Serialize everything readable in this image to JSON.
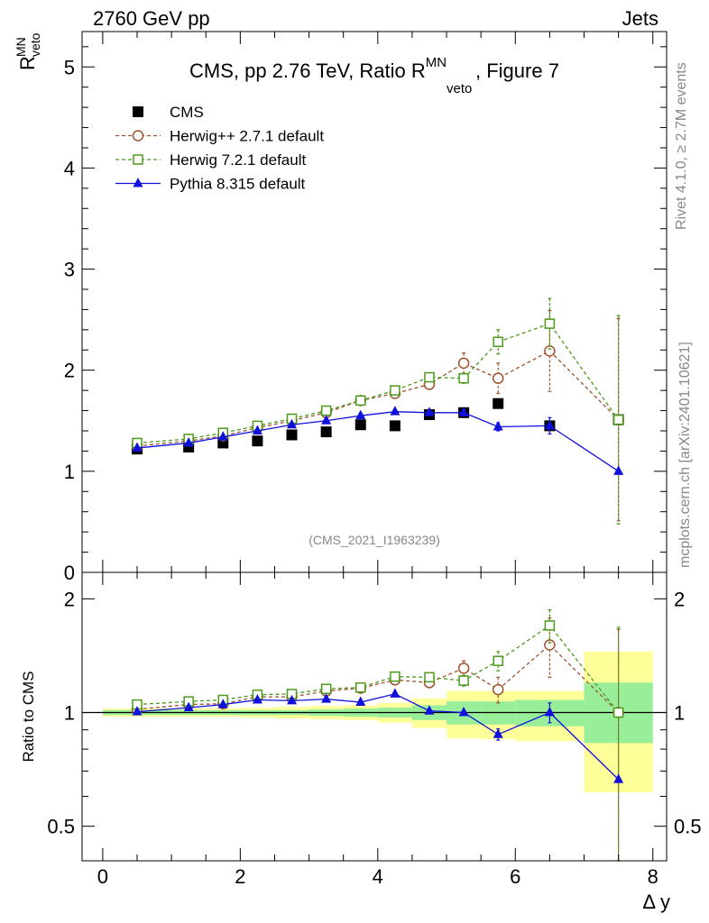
{
  "header": {
    "left": "2760 GeV pp",
    "right": "Jets"
  },
  "side_labels": {
    "rivet": "Rivet 4.1.0, ≥ 2.7M events",
    "mcplots": "mcplots.cern.ch [arXiv:2401.10621]"
  },
  "chart_data": [
    {
      "type": "scatter",
      "panel": "main",
      "title": "CMS, pp 2.76 TeV, Ratio R",
      "title_sup": "MN",
      "title_sub": "veto",
      "title_suffix": ", Figure 7",
      "ylabel": "R",
      "ylabel_sup": "MN",
      "ylabel_sub": "veto",
      "xlim": [
        -0.3,
        8.2
      ],
      "ylim": [
        0,
        5.35
      ],
      "yticks": [
        0,
        1,
        2,
        3,
        4,
        5
      ],
      "ytick_labels": [
        "0",
        "1",
        "2",
        "3",
        "4",
        "5"
      ],
      "watermark": "(CMS_2021_I1963239)",
      "legend": {
        "position": "top-left",
        "entries": [
          {
            "label": "CMS",
            "color": "#000000",
            "marker": "square-filled",
            "dashed": false,
            "line": false
          },
          {
            "label": "Herwig++ 2.7.1 default",
            "color": "#a0522d",
            "marker": "circle-open",
            "dashed": true,
            "line": true
          },
          {
            "label": "Herwig 7.2.1 default",
            "color": "#4c9a1c",
            "marker": "square-open",
            "dashed": true,
            "line": true
          },
          {
            "label": "Pythia 8.315 default",
            "color": "#1010dd",
            "marker": "triangle-filled",
            "dashed": false,
            "line": true
          }
        ]
      },
      "series": [
        {
          "name": "CMS",
          "color": "#000000",
          "marker": "square-filled",
          "dashed": false,
          "line": false,
          "x": [
            0.5,
            1.25,
            1.75,
            2.25,
            2.75,
            3.25,
            3.75,
            4.25,
            4.75,
            5.25,
            5.75,
            6.5,
            7.5
          ],
          "y": [
            1.22,
            1.24,
            1.28,
            1.3,
            1.36,
            1.39,
            1.46,
            1.45,
            1.56,
            1.58,
            1.67,
            1.45,
            1.51
          ],
          "err": [
            0.02,
            0.02,
            0.02,
            0.02,
            0.02,
            0.02,
            0.02,
            0.02,
            0.02,
            0.03,
            0.03,
            0.04,
            0.05
          ]
        },
        {
          "name": "Herwig++ 2.7.1 default",
          "color": "#a0522d",
          "marker": "circle-open",
          "dashed": true,
          "line": true,
          "x": [
            0.5,
            1.25,
            1.75,
            2.25,
            2.75,
            3.25,
            3.75,
            4.25,
            4.75,
            5.25,
            5.75,
            6.5,
            7.5
          ],
          "y": [
            1.25,
            1.3,
            1.35,
            1.43,
            1.5,
            1.58,
            1.7,
            1.77,
            1.86,
            2.07,
            1.92,
            2.19,
            1.51
          ],
          "err": [
            0.01,
            0.01,
            0.01,
            0.01,
            0.01,
            0.02,
            0.02,
            0.02,
            0.03,
            0.1,
            0.15,
            0.4,
            1.0
          ]
        },
        {
          "name": "Herwig 7.2.1 default",
          "color": "#4c9a1c",
          "marker": "square-open",
          "dashed": true,
          "line": true,
          "x": [
            0.5,
            1.25,
            1.75,
            2.25,
            2.75,
            3.25,
            3.75,
            4.25,
            4.75,
            5.25,
            5.75,
            6.5,
            7.5
          ],
          "y": [
            1.28,
            1.32,
            1.38,
            1.45,
            1.52,
            1.6,
            1.7,
            1.8,
            1.93,
            1.92,
            2.28,
            2.46,
            1.51
          ],
          "err": [
            0.01,
            0.01,
            0.01,
            0.01,
            0.01,
            0.02,
            0.02,
            0.02,
            0.03,
            0.05,
            0.12,
            0.25,
            1.03
          ]
        },
        {
          "name": "Pythia 8.315 default",
          "color": "#1010dd",
          "marker": "triangle-filled",
          "dashed": false,
          "line": true,
          "x": [
            0.5,
            1.25,
            1.75,
            2.25,
            2.75,
            3.25,
            3.75,
            4.25,
            4.75,
            5.25,
            5.75,
            6.5,
            7.5
          ],
          "y": [
            1.23,
            1.28,
            1.34,
            1.4,
            1.46,
            1.5,
            1.55,
            1.59,
            1.58,
            1.58,
            1.44,
            1.45,
            1.0
          ],
          "err": [
            0.01,
            0.01,
            0.01,
            0.01,
            0.01,
            0.01,
            0.02,
            0.02,
            0.02,
            0.03,
            0.04,
            0.08,
            0.0
          ]
        }
      ]
    },
    {
      "type": "scatter",
      "panel": "ratio",
      "ylabel": "Ratio to CMS",
      "xlabel": "Δ y",
      "xlim": [
        -0.3,
        8.2
      ],
      "ylim": [
        0.405,
        2.35
      ],
      "yscale": "log",
      "yticks": [
        0.5,
        1,
        2
      ],
      "ytick_labels": [
        "0.5",
        "1",
        "2"
      ],
      "xticks": [
        0,
        2,
        4,
        6,
        8
      ],
      "xtick_labels": [
        "0",
        "2",
        "4",
        "6",
        "8"
      ],
      "reference_line": 1,
      "uncertainty_bands": {
        "edges": [
          0,
          1,
          1.5,
          2,
          2.5,
          3,
          3.5,
          4,
          4.5,
          5,
          5.5,
          6,
          7,
          8
        ],
        "inner_color": "#99ee99",
        "outer_color": "#ffff99",
        "inner_low": [
          0.985,
          0.985,
          0.985,
          0.985,
          0.985,
          0.98,
          0.975,
          0.97,
          0.955,
          0.93,
          0.93,
          0.92,
          0.83
        ],
        "inner_high": [
          1.015,
          1.015,
          1.015,
          1.015,
          1.015,
          1.02,
          1.025,
          1.03,
          1.045,
          1.07,
          1.07,
          1.08,
          1.2
        ],
        "outer_low": [
          0.975,
          0.975,
          0.975,
          0.97,
          0.965,
          0.96,
          0.955,
          0.94,
          0.91,
          0.855,
          0.85,
          0.84,
          0.615
        ],
        "outer_high": [
          1.025,
          1.025,
          1.025,
          1.03,
          1.035,
          1.04,
          1.045,
          1.06,
          1.09,
          1.14,
          1.14,
          1.14,
          1.45
        ]
      },
      "series": [
        {
          "name": "Herwig++ 2.7.1 default",
          "color": "#a0522d",
          "marker": "circle-open",
          "dashed": true,
          "line": true,
          "x": [
            0.5,
            1.25,
            1.75,
            2.25,
            2.75,
            3.25,
            3.75,
            4.25,
            4.75,
            5.25,
            5.75,
            6.5,
            7.5
          ],
          "y": [
            1.02,
            1.05,
            1.055,
            1.1,
            1.1,
            1.14,
            1.16,
            1.22,
            1.2,
            1.31,
            1.15,
            1.51,
            1.0
          ],
          "err": [
            0.01,
            0.01,
            0.01,
            0.01,
            0.01,
            0.02,
            0.02,
            0.02,
            0.03,
            0.06,
            0.09,
            0.27,
            0.66
          ]
        },
        {
          "name": "Herwig 7.2.1 default",
          "color": "#4c9a1c",
          "marker": "square-open",
          "dashed": true,
          "line": true,
          "x": [
            0.5,
            1.25,
            1.75,
            2.25,
            2.75,
            3.25,
            3.75,
            4.25,
            4.75,
            5.25,
            5.75,
            6.5,
            7.5
          ],
          "y": [
            1.05,
            1.07,
            1.08,
            1.115,
            1.12,
            1.155,
            1.165,
            1.245,
            1.24,
            1.215,
            1.37,
            1.7,
            1.0
          ],
          "err": [
            0.01,
            0.01,
            0.01,
            0.01,
            0.01,
            0.02,
            0.02,
            0.02,
            0.03,
            0.04,
            0.08,
            0.17,
            0.68
          ]
        },
        {
          "name": "Pythia 8.315 default",
          "color": "#1010dd",
          "marker": "triangle-filled",
          "dashed": false,
          "line": true,
          "x": [
            0.5,
            1.25,
            1.75,
            2.25,
            2.75,
            3.25,
            3.75,
            4.25,
            4.75,
            5.25,
            5.75,
            6.5,
            7.5
          ],
          "y": [
            1.005,
            1.03,
            1.05,
            1.08,
            1.075,
            1.085,
            1.065,
            1.12,
            1.01,
            1.0,
            0.875,
            1.0,
            0.665
          ],
          "err": [
            0.005,
            0.005,
            0.005,
            0.005,
            0.005,
            0.01,
            0.01,
            0.01,
            0.01,
            0.01,
            0.03,
            0.06,
            0.0
          ]
        }
      ]
    }
  ]
}
